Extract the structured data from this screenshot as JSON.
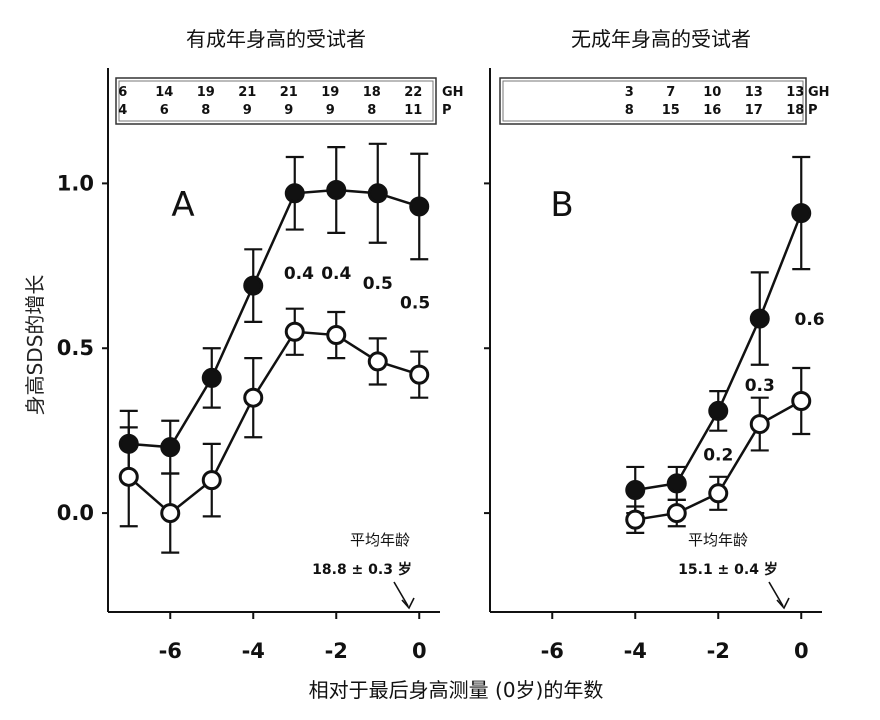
{
  "y_axis_label": "身高SDS的增长",
  "x_axis_label": "相对于最后身高测量 (0岁)的年数",
  "chart_data": [
    {
      "type": "line",
      "panel_letter": "A",
      "title": "有成年身高的受试者",
      "x": [
        -7,
        -6,
        -5,
        -4,
        -3,
        -2,
        -1,
        0
      ],
      "xticks": [
        -6,
        -4,
        -2,
        0
      ],
      "ylim": [
        -0.3,
        1.35
      ],
      "yticks": [
        0.0,
        0.5,
        1.0
      ],
      "ytick_labels": [
        "0.0",
        "0.5",
        "1.0"
      ],
      "series": [
        {
          "marker": "filled",
          "values": [
            0.21,
            0.2,
            0.41,
            0.69,
            0.97,
            0.98,
            0.97,
            0.93
          ],
          "errors": [
            0.1,
            0.08,
            0.09,
            0.11,
            0.11,
            0.13,
            0.15,
            0.16
          ]
        },
        {
          "marker": "open",
          "values": [
            0.11,
            0.0,
            0.1,
            0.35,
            0.55,
            0.54,
            0.46,
            0.42
          ],
          "errors": [
            0.15,
            0.12,
            0.11,
            0.12,
            0.07,
            0.07,
            0.07,
            0.07
          ]
        }
      ],
      "counts": {
        "x": [
          -7,
          -6,
          -5,
          -4,
          -3,
          -2,
          -1,
          0
        ],
        "GH": [
          "6",
          "14",
          "19",
          "21",
          "21",
          "19",
          "18",
          "22"
        ],
        "P": [
          "4",
          "6",
          "8",
          "9",
          "9",
          "9",
          "8",
          "11"
        ],
        "row_labels": [
          "GH",
          "P"
        ]
      },
      "differences": [
        {
          "x": -3,
          "text": "0.4"
        },
        {
          "x": -2,
          "text": "0.4"
        },
        {
          "x": -1,
          "text": "0.5"
        },
        {
          "x": 0,
          "text": "0.5"
        }
      ],
      "mean_age_label": "平均年龄",
      "mean_age_value": "18.8 ± 0.3 岁"
    },
    {
      "type": "line",
      "panel_letter": "B",
      "title": "无成年身高的受试者",
      "x": [
        -4,
        -3,
        -2,
        -1,
        0
      ],
      "xticks": [
        -6,
        -4,
        -2,
        0
      ],
      "ylim": [
        -0.3,
        1.35
      ],
      "yticks": [
        0.0,
        0.5,
        1.0
      ],
      "series": [
        {
          "marker": "filled",
          "values": [
            0.07,
            0.09,
            0.31,
            0.59,
            0.91
          ],
          "errors": [
            0.07,
            0.05,
            0.06,
            0.14,
            0.17
          ]
        },
        {
          "marker": "open",
          "values": [
            -0.02,
            0.0,
            0.06,
            0.27,
            0.34
          ],
          "errors": [
            0.04,
            0.04,
            0.05,
            0.08,
            0.1
          ]
        }
      ],
      "counts": {
        "x": [
          -4,
          -3,
          -2,
          -1,
          0
        ],
        "GH": [
          "3",
          "7",
          "10",
          "13",
          "13"
        ],
        "P": [
          "8",
          "15",
          "16",
          "17",
          "18"
        ],
        "row_labels": [
          "GH",
          "P"
        ]
      },
      "differences": [
        {
          "x": -2,
          "text": "0.2"
        },
        {
          "x": -1,
          "text": "0.3"
        },
        {
          "x": 0,
          "text": "0.6"
        }
      ],
      "mean_age_label": "平均年龄",
      "mean_age_value": "15.1 ± 0.4 岁"
    }
  ]
}
